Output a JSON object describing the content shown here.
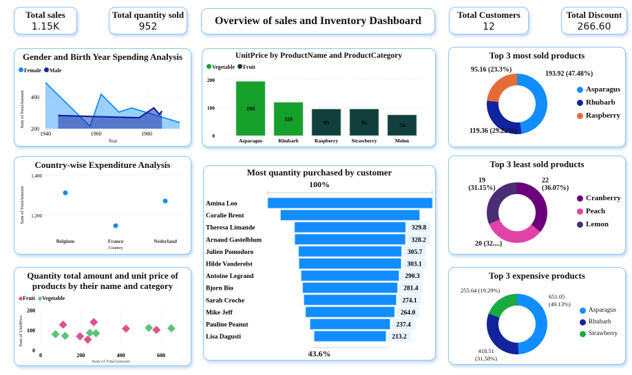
{
  "kpis": {
    "total_sales": {
      "label": "Total sales",
      "value": "1.15K"
    },
    "total_quantity": {
      "label": "Total quantity sold",
      "value": "952"
    },
    "total_customers": {
      "label": "Total Customers",
      "value": "12"
    },
    "total_discount": {
      "label": "Total Discount",
      "value": "266.60"
    }
  },
  "header": {
    "title": "Overview of sales and Inventory Dashboard"
  },
  "colors": {
    "blue": "#118DFF",
    "navy": "#12239E",
    "green": "#15A02A",
    "darkteal": "#123F3D",
    "orange": "#E66C37",
    "purple": "#6B007B",
    "pink": "#E044A7",
    "violet": "#4A2D74",
    "strawberry": "#1AAB40",
    "fruit_pink": "#E0508A",
    "veg_green": "#5CC47A"
  },
  "chart_data": [
    {
      "id": "gender",
      "type": "area",
      "title": "Gender and Birth Year Spending Analysis",
      "xlabel": "Year",
      "ylabel": "Sum of TotalAmount",
      "xticks": [
        1940,
        1960,
        1980
      ],
      "yticks": [
        200,
        400
      ],
      "ylim": [
        200,
        500
      ],
      "xlim": [
        1938,
        1995
      ],
      "legend": "top-left",
      "series": [
        {
          "name": "Female",
          "x": [
            1940,
            1957.6,
            1962,
            1969,
            1974,
            1993
          ],
          "y": [
            492,
            215,
            418,
            305,
            331,
            239
          ]
        },
        {
          "name": "Male",
          "x": [
            1945,
            1977,
            1982.8,
            1985,
            1986
          ],
          "y": [
            283,
            269,
            331,
            290,
            312
          ]
        }
      ]
    },
    {
      "id": "unitprice",
      "type": "bar",
      "title": "UnitPrice by ProductName and ProductCategory",
      "categories": [
        "Asparagus",
        "Rhubarb",
        "Raspberry",
        "Strawberry",
        "Melon"
      ],
      "values": [
        194,
        119,
        95,
        95,
        74
      ],
      "category_of": [
        "Vegetable",
        "Vegetable",
        "Fruit",
        "Fruit",
        "Fruit"
      ],
      "legend_entries": [
        "Vegetable",
        "Fruit"
      ],
      "yticks": [
        0,
        100,
        200
      ],
      "ylim": [
        0,
        200
      ]
    },
    {
      "id": "country",
      "type": "scatter",
      "title": "Country-wise Expenditure Analysis",
      "xlabel": "Country",
      "ylabel": "Sum of TotalAmount",
      "categories": [
        "Belgium",
        "France",
        "Nederland"
      ],
      "values": [
        1313,
        1148,
        1272
      ],
      "yticks": [
        "1,200",
        "1,400"
      ],
      "ylim": [
        1100,
        1400
      ]
    },
    {
      "id": "qty",
      "type": "scatter",
      "title": "Quantity total amount and unit price of products by their name and category",
      "xlabel": "Sum of TotalAmount",
      "ylabel": "Sum of UnitPrice",
      "xticks": [
        0,
        200,
        400,
        600
      ],
      "yticks": [
        0,
        100,
        200
      ],
      "xlim": [
        0,
        680
      ],
      "ylim": [
        0,
        200
      ],
      "series": [
        {
          "name": "Fruit",
          "x": [
            112,
            265,
            196,
            235,
            425,
            577
          ],
          "y": [
            128,
            141,
            70,
            53,
            108,
            102
          ]
        },
        {
          "name": "Vegetable",
          "x": [
            74,
            122,
            245,
            276,
            539,
            651
          ],
          "y": [
            80,
            72,
            87,
            85,
            112,
            110
          ]
        }
      ]
    },
    {
      "id": "funnel",
      "type": "bar",
      "title": "Most quantity purchased by customer",
      "top_label": "100%",
      "bottom_label": "43.6%",
      "categories": [
        "Amina Loo",
        "Coralie Brent",
        "Theresa Limande",
        "Arnaud Gastelblum",
        "Julien Pomodoro",
        "Hilde Vanderelst",
        "Antoine Legrand",
        "Bjorn Bio",
        "Sarah Croche",
        "Mike Jeff",
        "Pauline Peanut",
        "Lisa Dagusti"
      ],
      "values": [
        489,
        413,
        329.8,
        328.2,
        305.7,
        303.1,
        290.3,
        281.4,
        274.1,
        264.0,
        237.4,
        213.2
      ],
      "value_labels": [
        "",
        "",
        "329.8",
        "328.2",
        "305.7",
        "303.1",
        "290.3",
        "281.4",
        "274.1",
        "264.0",
        "237.4",
        "213.2"
      ]
    },
    {
      "id": "most_sold",
      "type": "pie",
      "title": "Top 3 most sold products",
      "categories": [
        "Asparagus",
        "Rhubarb",
        "Raspberry"
      ],
      "values": [
        193.92,
        119.36,
        95.16
      ],
      "percents": [
        47.48,
        29.22,
        23.3
      ],
      "labels": [
        "193.92 (47.48%)",
        "119.36 (29.22%)",
        "95.16 (23.3%)"
      ]
    },
    {
      "id": "least_sold",
      "type": "pie",
      "title": "Top 3 least sold products",
      "categories": [
        "Cranberry",
        "Peach",
        "Lemon"
      ],
      "values": [
        22,
        20,
        19
      ],
      "percents": [
        36.07,
        32.79,
        31.15
      ],
      "labels": [
        "22 (36.07%)",
        "20 (32....)",
        "19 (31.15%)"
      ]
    },
    {
      "id": "expensive",
      "type": "pie",
      "title": "Top 3 expensive products",
      "categories": [
        "Asparagus",
        "Rhubarb",
        "Strawberry"
      ],
      "values": [
        651.05,
        418.51,
        255.64
      ],
      "percents": [
        49.13,
        31.58,
        19.29
      ],
      "labels": [
        "651.05 (49.13%)",
        "418.51 (31.58%)",
        "255.64 (19.29%)"
      ]
    }
  ]
}
